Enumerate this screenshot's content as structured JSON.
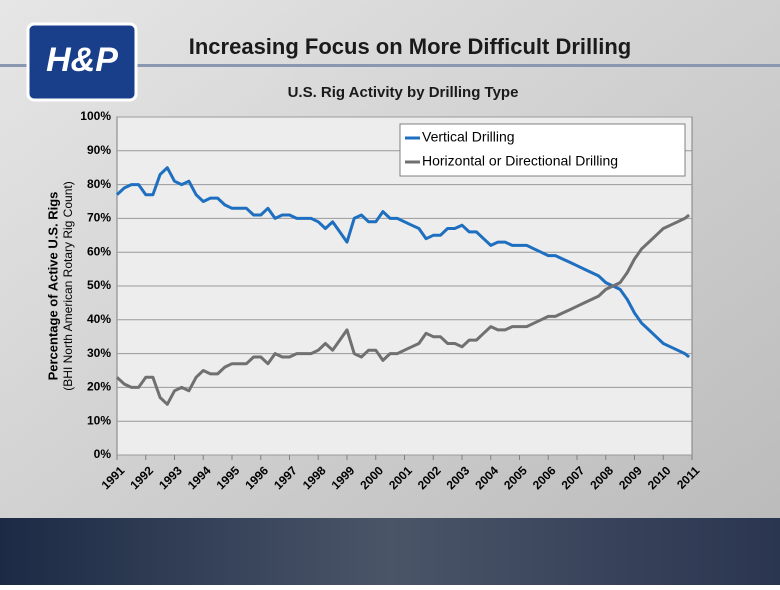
{
  "header": {
    "title": "Increasing Focus on More Difficult Drilling",
    "logo": "H&P"
  },
  "chart_data": {
    "type": "line",
    "title": "U.S. Rig Activity by Drilling Type",
    "y_label": "Percentage of Active U.S. Rigs",
    "y_label_sub": "(BHI North American Rotary Rig Count)",
    "x": [
      1991,
      1991.25,
      1991.5,
      1991.75,
      1992,
      1992.25,
      1992.5,
      1992.75,
      1993,
      1993.25,
      1993.5,
      1993.75,
      1994,
      1994.25,
      1994.5,
      1994.75,
      1995,
      1995.25,
      1995.5,
      1995.75,
      1996,
      1996.25,
      1996.5,
      1996.75,
      1997,
      1997.25,
      1997.5,
      1997.75,
      1998,
      1998.25,
      1998.5,
      1998.75,
      1999,
      1999.25,
      1999.5,
      1999.75,
      2000,
      2000.25,
      2000.5,
      2000.75,
      2001,
      2001.25,
      2001.5,
      2001.75,
      2002,
      2002.25,
      2002.5,
      2002.75,
      2003,
      2003.25,
      2003.5,
      2003.75,
      2004,
      2004.25,
      2004.5,
      2004.75,
      2005,
      2005.25,
      2005.5,
      2005.75,
      2006,
      2006.25,
      2006.5,
      2006.75,
      2007,
      2007.25,
      2007.5,
      2007.75,
      2008,
      2008.25,
      2008.5,
      2008.75,
      2009,
      2009.25,
      2009.5,
      2009.75,
      2010,
      2010.25,
      2010.5,
      2010.75,
      2010.9
    ],
    "series": [
      {
        "name": "Vertical Drilling",
        "color": "#1f6fc0",
        "values": [
          77,
          79,
          80,
          80,
          77,
          77,
          83,
          85,
          81,
          80,
          81,
          77,
          75,
          76,
          76,
          74,
          73,
          73,
          73,
          71,
          71,
          73,
          70,
          71,
          71,
          70,
          70,
          70,
          69,
          67,
          69,
          66,
          63,
          70,
          71,
          69,
          69,
          72,
          70,
          70,
          69,
          68,
          67,
          64,
          65,
          65,
          67,
          67,
          68,
          66,
          66,
          64,
          62,
          63,
          63,
          62,
          62,
          62,
          61,
          60,
          59,
          59,
          58,
          57,
          56,
          55,
          54,
          53,
          51,
          50,
          49,
          46,
          42,
          39,
          37,
          35,
          33,
          32,
          31,
          30,
          29
        ]
      },
      {
        "name": "Horizontal or Directional Drilling",
        "color": "#707070",
        "values": [
          23,
          21,
          20,
          20,
          23,
          23,
          17,
          15,
          19,
          20,
          19,
          23,
          25,
          24,
          24,
          26,
          27,
          27,
          27,
          29,
          29,
          27,
          30,
          29,
          29,
          30,
          30,
          30,
          31,
          33,
          31,
          34,
          37,
          30,
          29,
          31,
          31,
          28,
          30,
          30,
          31,
          32,
          33,
          36,
          35,
          35,
          33,
          33,
          32,
          34,
          34,
          36,
          38,
          37,
          37,
          38,
          38,
          38,
          39,
          40,
          41,
          41,
          42,
          43,
          44,
          45,
          46,
          47,
          49,
          50,
          51,
          54,
          58,
          61,
          63,
          65,
          67,
          68,
          69,
          70,
          71
        ]
      }
    ],
    "xlim": [
      1991,
      2011
    ],
    "xticks": [
      1991,
      1992,
      1993,
      1994,
      1995,
      1996,
      1997,
      1998,
      1999,
      2000,
      2001,
      2002,
      2003,
      2004,
      2005,
      2006,
      2007,
      2008,
      2009,
      2010,
      2011
    ],
    "ylim": [
      0,
      100
    ],
    "yticks": [
      {
        "value": 0,
        "label": "0%"
      },
      {
        "value": 10,
        "label": "10%"
      },
      {
        "value": 20,
        "label": "20%"
      },
      {
        "value": 30,
        "label": "30%"
      },
      {
        "value": 40,
        "label": "40%"
      },
      {
        "value": 50,
        "label": "50%"
      },
      {
        "value": 60,
        "label": "60%"
      },
      {
        "value": 70,
        "label": "70%"
      },
      {
        "value": 80,
        "label": "80%"
      },
      {
        "value": 90,
        "label": "90%"
      },
      {
        "value": 100,
        "label": "100%"
      }
    ],
    "grid": true,
    "legend": "top-right"
  }
}
